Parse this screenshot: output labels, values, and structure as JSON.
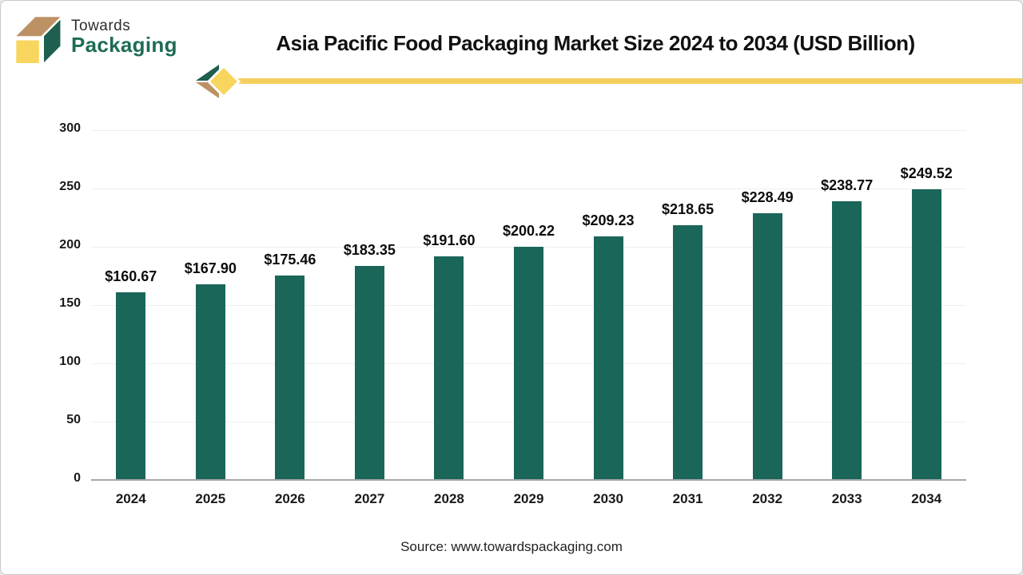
{
  "header": {
    "logo": {
      "line1": "Towards",
      "line2": "Packaging"
    },
    "title": "Asia Pacific Food Packaging Market Size 2024 to 2034 (USD Billion)"
  },
  "chart_data": {
    "type": "bar",
    "title": "Asia Pacific Food Packaging Market Size 2024 to 2034 (USD Billion)",
    "categories": [
      "2024",
      "2025",
      "2026",
      "2027",
      "2028",
      "2029",
      "2030",
      "2031",
      "2032",
      "2033",
      "2034"
    ],
    "values": [
      160.67,
      167.9,
      175.46,
      183.35,
      191.6,
      200.22,
      209.23,
      218.65,
      228.49,
      238.77,
      249.52
    ],
    "value_labels": [
      "$160.67",
      "$167.90",
      "$175.46",
      "$183.35",
      "$191.60",
      "$200.22",
      "$209.23",
      "$218.65",
      "$228.49",
      "$238.77",
      "$249.52"
    ],
    "xlabel": "",
    "ylabel": "",
    "ylim": [
      0,
      300
    ],
    "yticks": [
      0,
      50,
      100,
      150,
      200,
      250,
      300
    ],
    "grid": true,
    "legend": "none",
    "bar_color": "#1a6659"
  },
  "footer": {
    "source": "Source: www.towardspackaging.com"
  },
  "colors": {
    "bar_teal": "#1a6659",
    "brand_green": "#1e6b56",
    "logo_green_face": "#1e5f4f",
    "logo_tan_face": "#bc9265",
    "logo_yellow_face": "#f8d55c",
    "divider_yellow": "#f5cf5e",
    "gridline": "#efefef",
    "axis": "#a6a6a6",
    "title_text": "#111111"
  }
}
